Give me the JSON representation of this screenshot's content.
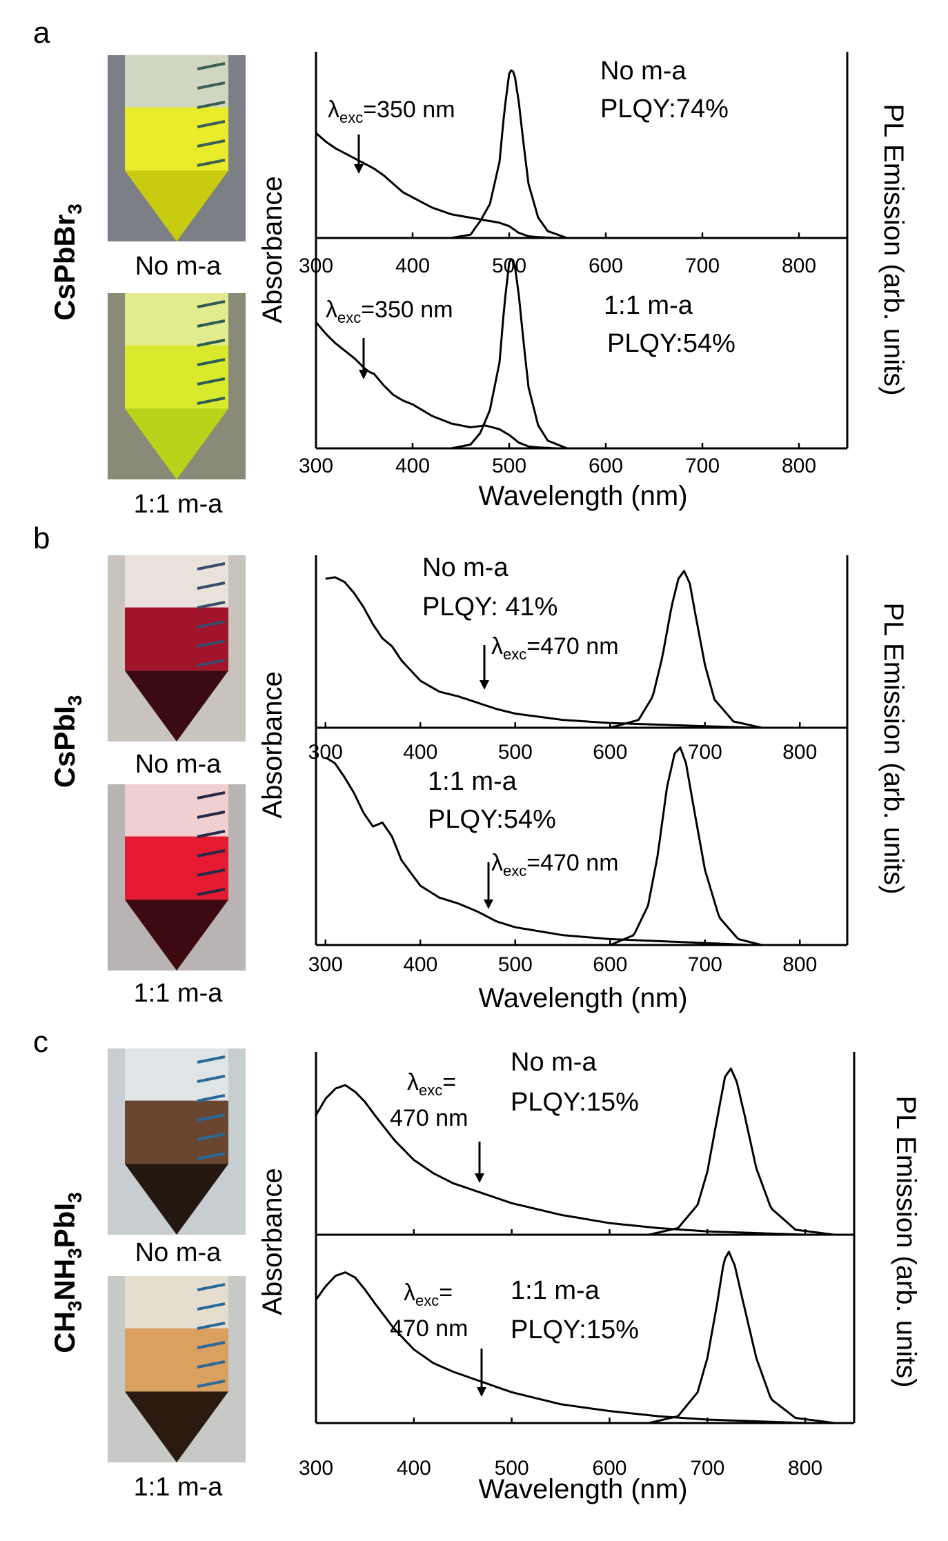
{
  "figure": {
    "panels": [
      {
        "letter": "a",
        "compound": {
          "parts": [
            {
              "t": "CsPbBr",
              "sub": false
            },
            {
              "t": "3",
              "sub": true
            }
          ]
        },
        "vial_labels": [
          "No m-a",
          "1:1 m-a"
        ],
        "vial_colors": [
          {
            "bg": "#7d7f86",
            "liquid": "#e8ec2a",
            "cone": "#c8cc10",
            "glass": "#cfd7c2",
            "grad": "#3e5f55"
          },
          {
            "bg": "#8a8a78",
            "liquid": "#d9ea2e",
            "cone": "#b9d31a",
            "glass": "#e3eb8f",
            "grad": "#2f5d55"
          }
        ],
        "subplots": [
          {
            "sample": "No m-a",
            "plqy": "PLQY:74%",
            "excitation": {
              "prefix": "λ",
              "sub": "exc",
              "text": "=350 nm"
            },
            "tick_labels": [
              "300",
              "400",
              "500",
              "600",
              "700",
              "800"
            ]
          },
          {
            "sample": "1:1 m-a",
            "plqy": "PLQY:54%",
            "excitation": {
              "prefix": "λ",
              "sub": "exc",
              "text": "=350 nm"
            },
            "tick_labels": [
              "300",
              "400",
              "500",
              "600",
              "700",
              "800"
            ]
          }
        ],
        "ylabel_left": "Absorbance",
        "ylabel_right": "PL Emission (arb. units)",
        "xlabel": "Wavelength (nm)"
      },
      {
        "letter": "b",
        "compound": {
          "parts": [
            {
              "t": "CsPbI",
              "sub": false
            },
            {
              "t": "3",
              "sub": true
            }
          ]
        },
        "vial_labels": [
          "No m-a",
          "1:1 m-a"
        ],
        "vial_colors": [
          {
            "bg": "#c9c3bd",
            "liquid": "#a1142a",
            "cone": "#3a0c12",
            "glass": "#e8e2da",
            "grad": "#3b4b6c"
          },
          {
            "bg": "#b9b3b3",
            "liquid": "#e5192f",
            "cone": "#3c0a10",
            "glass": "#f0cfd0",
            "grad": "#232a48"
          }
        ],
        "subplots": [
          {
            "sample": "No m-a",
            "plqy": "PLQY: 41%",
            "excitation": {
              "prefix": "λ",
              "sub": "exc",
              "text": "=470 nm"
            },
            "tick_labels": [
              "300",
              "400",
              "500",
              "600",
              "700",
              "800"
            ]
          },
          {
            "sample": "1:1 m-a",
            "plqy": "PLQY:54%",
            "excitation": {
              "prefix": "λ",
              "sub": "exc",
              "text": "=470 nm"
            },
            "tick_labels": [
              "300",
              "400",
              "500",
              "600",
              "700",
              "800"
            ]
          }
        ],
        "ylabel_left": "Absorbance",
        "ylabel_right": "PL Emission (arb. units)",
        "xlabel": "Wavelength (nm)"
      },
      {
        "letter": "c",
        "compound": {
          "parts": [
            {
              "t": "CH",
              "sub": false
            },
            {
              "t": "3",
              "sub": true
            },
            {
              "t": "NH",
              "sub": false
            },
            {
              "t": "3",
              "sub": true
            },
            {
              "t": "PbI",
              "sub": false
            },
            {
              "t": "3",
              "sub": true
            }
          ]
        },
        "vial_labels": [
          "No m-a",
          "1:1 m-a"
        ],
        "vial_colors": [
          {
            "bg": "#c7cdd0",
            "liquid": "#6a4530",
            "cone": "#241710",
            "glass": "#dfe4e6",
            "grad": "#2a6a9a"
          },
          {
            "bg": "#c7c9c7",
            "liquid": "#d9a060",
            "cone": "#2a1a10",
            "glass": "#e5ddd0",
            "grad": "#2a6a9a"
          }
        ],
        "subplots": [
          {
            "sample": "No m-a",
            "plqy": "PLQY:15%",
            "excitation": {
              "prefix": "λ",
              "sub": "exc",
              "text": "=",
              "line2": "470 nm"
            },
            "tick_labels": []
          },
          {
            "sample": "1:1 m-a",
            "plqy": "PLQY:15%",
            "excitation": {
              "prefix": "λ",
              "sub": "exc",
              "text": "=",
              "line2": "470 nm"
            },
            "tick_labels": [
              "300",
              "400",
              "500",
              "600",
              "700",
              "800"
            ]
          }
        ],
        "ylabel_left": "Absorbance",
        "ylabel_right": "PL Emission (arb. units)",
        "xlabel": "Wavelength (nm)"
      }
    ]
  },
  "chart_data": [
    {
      "type": "line",
      "panel": "a",
      "subplot": "No m-a",
      "title": "No m-a PLQY:74%",
      "xlabel": "",
      "ylabel": "Absorbance / PL Emission (arb. units)",
      "xlim": [
        300,
        850
      ],
      "ylim": [
        0,
        1.1
      ],
      "series": [
        {
          "name": "Absorbance",
          "x": [
            300,
            310,
            320,
            330,
            340,
            350,
            360,
            370,
            380,
            390,
            400,
            420,
            440,
            460,
            470,
            480,
            490,
            500,
            510,
            520,
            530,
            550
          ],
          "y": [
            0.62,
            0.57,
            0.53,
            0.5,
            0.47,
            0.44,
            0.41,
            0.37,
            0.32,
            0.27,
            0.24,
            0.18,
            0.14,
            0.12,
            0.11,
            0.1,
            0.09,
            0.07,
            0.03,
            0.01,
            0.005,
            0
          ]
        },
        {
          "name": "PL Emission",
          "x": [
            440,
            460,
            470,
            480,
            490,
            495,
            500,
            503,
            506,
            510,
            515,
            520,
            530,
            540,
            560
          ],
          "y": [
            0,
            0.02,
            0.1,
            0.2,
            0.45,
            0.75,
            0.97,
            1.0,
            0.95,
            0.8,
            0.55,
            0.32,
            0.12,
            0.04,
            0
          ]
        }
      ]
    },
    {
      "type": "line",
      "panel": "a",
      "subplot": "1:1 m-a",
      "title": "1:1 m-a PLQY:54%",
      "xlabel": "Wavelength (nm)",
      "ylabel": "Absorbance / PL Emission (arb. units)",
      "xlim": [
        300,
        850
      ],
      "ylim": [
        0,
        1.1
      ],
      "series": [
        {
          "name": "Absorbance",
          "x": [
            300,
            310,
            320,
            330,
            340,
            350,
            355,
            360,
            370,
            380,
            390,
            400,
            420,
            440,
            460,
            475,
            490,
            500,
            510,
            520,
            530,
            550
          ],
          "y": [
            0.66,
            0.6,
            0.55,
            0.51,
            0.47,
            0.42,
            0.4,
            0.39,
            0.33,
            0.28,
            0.25,
            0.23,
            0.17,
            0.13,
            0.11,
            0.12,
            0.1,
            0.07,
            0.03,
            0.01,
            0.005,
            0
          ]
        },
        {
          "name": "PL Emission",
          "x": [
            440,
            460,
            470,
            480,
            490,
            495,
            500,
            503,
            506,
            510,
            515,
            520,
            530,
            540,
            560
          ],
          "y": [
            0,
            0.02,
            0.08,
            0.2,
            0.45,
            0.75,
            0.97,
            1.0,
            0.95,
            0.8,
            0.55,
            0.32,
            0.12,
            0.04,
            0
          ]
        }
      ]
    },
    {
      "type": "line",
      "panel": "b",
      "subplot": "No m-a",
      "title": "No m-a PLQY: 41%",
      "xlabel": "",
      "ylabel": "Absorbance / PL Emission (arb. units)",
      "xlim": [
        290,
        850
      ],
      "ylim": [
        0,
        1.1
      ],
      "series": [
        {
          "name": "Absorbance",
          "x": [
            300,
            310,
            320,
            330,
            340,
            350,
            360,
            370,
            380,
            400,
            420,
            440,
            460,
            480,
            500,
            550,
            600,
            650,
            700,
            750
          ],
          "y": [
            0.95,
            0.96,
            0.93,
            0.86,
            0.77,
            0.66,
            0.57,
            0.52,
            0.43,
            0.3,
            0.23,
            0.2,
            0.16,
            0.12,
            0.09,
            0.05,
            0.03,
            0.02,
            0.01,
            0
          ]
        },
        {
          "name": "PL Emission",
          "x": [
            600,
            630,
            645,
            655,
            665,
            672,
            678,
            684,
            690,
            700,
            710,
            730,
            760
          ],
          "y": [
            0,
            0.05,
            0.2,
            0.45,
            0.78,
            0.95,
            1.0,
            0.92,
            0.72,
            0.4,
            0.18,
            0.04,
            0
          ]
        }
      ]
    },
    {
      "type": "line",
      "panel": "b",
      "subplot": "1:1 m-a",
      "title": "1:1 m-a PLQY:54%",
      "xlabel": "Wavelength (nm)",
      "ylabel": "Absorbance / PL Emission (arb. units)",
      "xlim": [
        300,
        850
      ],
      "ylim": [
        0,
        1.1
      ],
      "series": [
        {
          "name": "Absorbance",
          "x": [
            300,
            310,
            320,
            330,
            340,
            350,
            360,
            370,
            380,
            400,
            420,
            440,
            460,
            480,
            500,
            550,
            600,
            650,
            700,
            750
          ],
          "y": [
            0.95,
            0.92,
            0.85,
            0.77,
            0.67,
            0.6,
            0.62,
            0.55,
            0.43,
            0.3,
            0.24,
            0.21,
            0.17,
            0.12,
            0.09,
            0.05,
            0.03,
            0.02,
            0.01,
            0
          ]
        },
        {
          "name": "PL Emission",
          "x": [
            600,
            625,
            640,
            650,
            660,
            668,
            674,
            680,
            688,
            700,
            715,
            735,
            760
          ],
          "y": [
            0,
            0.05,
            0.2,
            0.45,
            0.8,
            0.97,
            1.0,
            0.92,
            0.7,
            0.38,
            0.14,
            0.03,
            0
          ]
        }
      ]
    },
    {
      "type": "line",
      "panel": "c",
      "subplot": "No m-a",
      "title": "No m-a PLQY:15%",
      "xlabel": "",
      "ylabel": "Absorbance / PL Emission (arb. units)",
      "xlim": [
        300,
        850
      ],
      "ylim": [
        0,
        1.1
      ],
      "series": [
        {
          "name": "Absorbance",
          "x": [
            300,
            310,
            320,
            330,
            340,
            350,
            360,
            380,
            400,
            420,
            440,
            460,
            480,
            500,
            550,
            600,
            650,
            700,
            750,
            800
          ],
          "y": [
            0.72,
            0.82,
            0.88,
            0.9,
            0.86,
            0.8,
            0.72,
            0.57,
            0.45,
            0.37,
            0.31,
            0.27,
            0.23,
            0.19,
            0.12,
            0.07,
            0.04,
            0.02,
            0.01,
            0
          ]
        },
        {
          "name": "PL Emission",
          "x": [
            640,
            670,
            690,
            700,
            710,
            718,
            724,
            730,
            738,
            750,
            765,
            790,
            830
          ],
          "y": [
            0,
            0.04,
            0.18,
            0.38,
            0.7,
            0.95,
            1.0,
            0.92,
            0.72,
            0.4,
            0.16,
            0.03,
            0
          ]
        }
      ]
    },
    {
      "type": "line",
      "panel": "c",
      "subplot": "1:1 m-a",
      "title": "1:1 m-a PLQY:15%",
      "xlabel": "Wavelength (nm)",
      "ylabel": "Absorbance / PL Emission (arb. units)",
      "xlim": [
        300,
        850
      ],
      "ylim": [
        0,
        1.1
      ],
      "series": [
        {
          "name": "Absorbance",
          "x": [
            300,
            310,
            320,
            330,
            340,
            350,
            360,
            380,
            400,
            420,
            440,
            460,
            480,
            500,
            550,
            600,
            650,
            700,
            750,
            800
          ],
          "y": [
            0.72,
            0.8,
            0.86,
            0.88,
            0.85,
            0.78,
            0.7,
            0.55,
            0.43,
            0.35,
            0.3,
            0.26,
            0.22,
            0.18,
            0.11,
            0.07,
            0.04,
            0.02,
            0.01,
            0
          ]
        },
        {
          "name": "PL Emission",
          "x": [
            640,
            670,
            690,
            700,
            710,
            717,
            722,
            728,
            736,
            750,
            765,
            790,
            830
          ],
          "y": [
            0,
            0.04,
            0.18,
            0.38,
            0.7,
            0.95,
            1.0,
            0.92,
            0.72,
            0.38,
            0.14,
            0.03,
            0
          ]
        }
      ]
    }
  ]
}
